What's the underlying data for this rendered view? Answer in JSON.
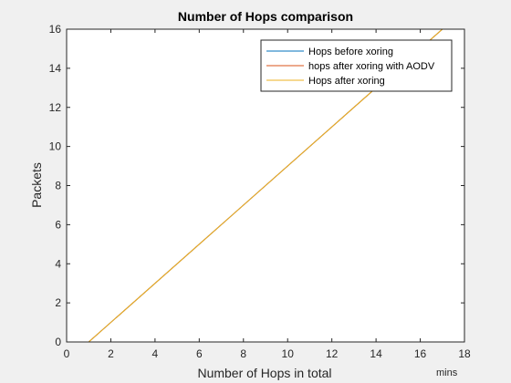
{
  "chart_data": {
    "type": "line",
    "title": "Number of Hops comparison",
    "xlabel": "Number of Hops in total",
    "ylabel": "Packets",
    "annotation": "mins",
    "xlim": [
      0,
      18
    ],
    "ylim": [
      0,
      16
    ],
    "xticks": [
      0,
      2,
      4,
      6,
      8,
      10,
      12,
      14,
      16,
      18
    ],
    "yticks": [
      0,
      2,
      4,
      6,
      8,
      10,
      12,
      14,
      16
    ],
    "grid": false,
    "legend_position": "top-right",
    "series": [
      {
        "name": "Hops before xoring",
        "color": "#0072bd",
        "x": [
          1,
          17
        ],
        "y": [
          0,
          16
        ]
      },
      {
        "name": "hops after xoring with AODV",
        "color": "#d95319",
        "x": [
          1,
          17
        ],
        "y": [
          0,
          16
        ]
      },
      {
        "name": "Hops after xoring",
        "color": "#edb120",
        "x": [
          1,
          17
        ],
        "y": [
          0,
          16
        ]
      }
    ]
  }
}
